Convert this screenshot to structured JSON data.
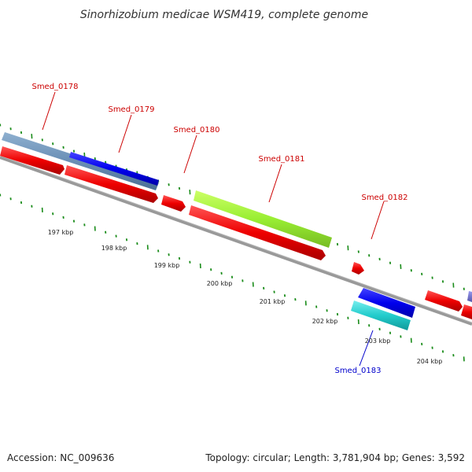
{
  "title": "Sinorhizobium medicae WSM419, complete genome",
  "footer": {
    "accession": "Accession: NC_009636",
    "topology": "Topology: circular; Length: 3,781,904 bp; Genes: 3,592"
  },
  "gene_labels": {
    "smed_0178": "Smed_0178",
    "smed_0179": "Smed_0179",
    "smed_0180": "Smed_0180",
    "smed_0181": "Smed_0181",
    "smed_0182": "Smed_0182",
    "smed_0183": "Smed_0183"
  },
  "kbp_labels": [
    "197 kbp",
    "198 kbp",
    "199 kbp",
    "200 kbp",
    "201 kbp",
    "202 kbp",
    "203 kbp",
    "204 kbp"
  ],
  "colors": {
    "forward_gene": "#ff0000",
    "reverse_gene_blue": "#0000ff",
    "steelblue_feature": "#6a8fb5",
    "green_feature": "#99ee33",
    "cyan_feature": "#22cccc",
    "backbone": "#888888",
    "tick_green": "#1a8c1a"
  }
}
